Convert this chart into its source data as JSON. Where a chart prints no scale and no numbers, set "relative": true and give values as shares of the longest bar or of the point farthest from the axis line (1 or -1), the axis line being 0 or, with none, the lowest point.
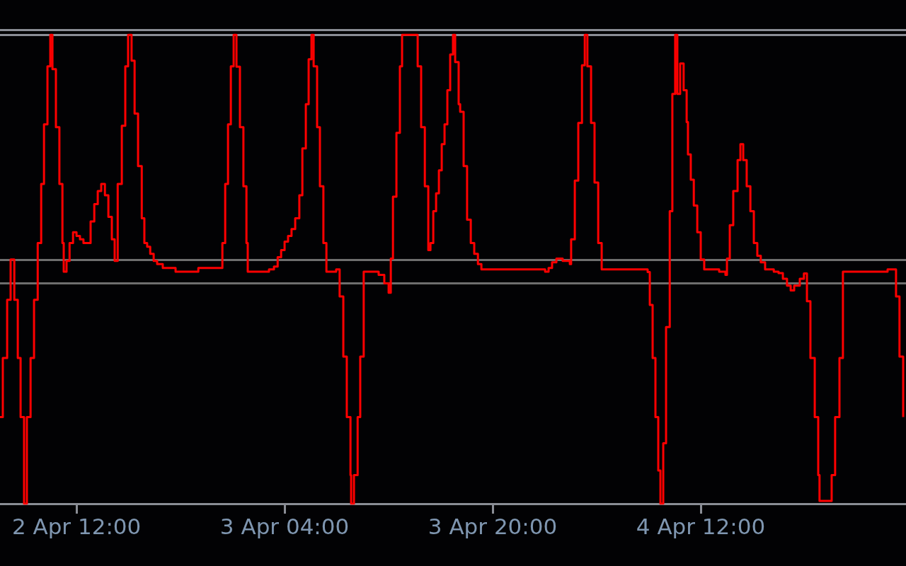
{
  "chart_data": {
    "type": "step",
    "relative": true,
    "color": "#ff0000",
    "tick_labels": "x",
    "xlim": [
      "--04-02T06:07",
      "--04-05T03:47"
    ],
    "xticks": [
      {
        "value": "--04-02T12:00",
        "label": "2 Apr 12:00"
      },
      {
        "value": "--04-03T04:00",
        "label": "3 Apr 04:00"
      },
      {
        "value": "--04-03T20:00",
        "label": "3 Apr 20:00"
      },
      {
        "value": "--04-04T12:00",
        "label": "4 Apr 12:00"
      }
    ],
    "ref_lines": [
      {
        "axis": "y",
        "value": 1.01,
        "color": "#8a8d95"
      },
      {
        "axis": "y",
        "value": 1.003,
        "color": "#8a8d95"
      },
      {
        "axis": "y",
        "value": 0.521,
        "color": "#6e6e6e"
      },
      {
        "axis": "y",
        "value": 0.473,
        "color": "#6e6e6e"
      }
    ],
    "x": [
      "--04-02T06:07",
      "--04-02T06:20",
      "--04-02T06:40",
      "--04-02T06:56",
      "--04-02T07:13",
      "--04-02T07:29",
      "--04-02T07:42",
      "--04-02T07:58",
      "--04-02T08:11",
      "--04-02T08:28",
      "--04-02T08:44",
      "--04-02T09:01",
      "--04-02T09:17",
      "--04-02T09:30",
      "--04-02T09:46",
      "--04-02T09:59",
      "--04-02T10:09",
      "--04-02T10:25",
      "--04-02T10:41",
      "--04-02T10:55",
      "--04-02T11:01",
      "--04-02T11:14",
      "--04-02T11:28",
      "--04-02T11:44",
      "--04-02T12:00",
      "--04-02T12:16",
      "--04-02T12:32",
      "--04-02T12:49",
      "--04-02T13:05",
      "--04-02T13:22",
      "--04-02T13:38",
      "--04-02T13:54",
      "--04-02T14:11",
      "--04-02T14:27",
      "--04-02T14:43",
      "--04-02T14:56",
      "--04-02T15:10",
      "--04-02T15:29",
      "--04-02T15:45",
      "--04-02T15:58",
      "--04-02T16:14",
      "--04-02T16:28",
      "--04-02T16:44",
      "--04-02T17:01",
      "--04-02T17:13",
      "--04-02T17:26",
      "--04-02T17:40",
      "--04-02T17:56",
      "--04-02T18:12",
      "--04-02T18:38",
      "--04-02T19:37",
      "--04-02T21:22",
      "--04-02T22:59",
      "--04-02T23:13",
      "--04-02T23:26",
      "--04-02T23:39",
      "--04-02T23:52",
      "--04-03T00:05",
      "--04-03T00:18",
      "--04-03T00:34",
      "--04-03T00:50",
      "--04-03T01:04",
      "--04-03T01:10",
      "--04-03T02:16",
      "--04-03T02:48",
      "--04-03T03:11",
      "--04-03T03:28",
      "--04-03T03:44",
      "--04-03T04:00",
      "--04-03T04:16",
      "--04-03T04:32",
      "--04-03T04:49",
      "--04-03T05:08",
      "--04-03T05:22",
      "--04-03T05:38",
      "--04-03T05:51",
      "--04-03T06:04",
      "--04-03T06:14",
      "--04-03T06:30",
      "--04-03T06:43",
      "--04-03T06:59",
      "--04-03T07:13",
      "--04-03T07:58",
      "--04-03T08:14",
      "--04-03T08:31",
      "--04-03T08:47",
      "--04-03T09:04",
      "--04-03T09:07",
      "--04-03T09:20",
      "--04-03T09:37",
      "--04-03T09:49",
      "--04-03T10:05",
      "--04-03T11:14",
      "--04-03T11:40",
      "--04-03T12:00",
      "--04-03T12:10",
      "--04-03T12:20",
      "--04-03T12:36",
      "--04-03T12:52",
      "--04-03T13:02",
      "--04-03T14:04",
      "--04-03T14:14",
      "--04-03T14:30",
      "--04-03T14:47",
      "--04-03T15:03",
      "--04-03T15:13",
      "--04-03T15:26",
      "--04-03T15:39",
      "--04-03T15:52",
      "--04-03T16:05",
      "--04-03T16:18",
      "--04-03T16:31",
      "--04-03T16:44",
      "--04-03T16:57",
      "--04-03T17:07",
      "--04-03T17:23",
      "--04-03T17:30",
      "--04-03T17:46",
      "--04-03T18:02",
      "--04-03T18:19",
      "--04-03T18:35",
      "--04-03T18:52",
      "--04-03T19:08",
      "--04-03T23:45",
      "--04-04T00:02",
      "--04-04T00:18",
      "--04-04T00:34",
      "--04-04T00:54",
      "--04-04T01:23",
      "--04-04T01:56",
      "--04-04T02:02",
      "--04-04T02:19",
      "--04-04T02:35",
      "--04-04T02:52",
      "--04-04T03:05",
      "--04-04T03:17",
      "--04-04T03:34",
      "--04-04T03:50",
      "--04-04T04:07",
      "--04-04T04:23",
      "--04-04T07:39",
      "--04-04T07:55",
      "--04-04T08:05",
      "--04-04T08:18",
      "--04-04T08:31",
      "--04-04T08:44",
      "--04-04T08:54",
      "--04-04T09:07",
      "--04-04T09:20",
      "--04-04T09:37",
      "--04-04T09:49",
      "--04-04T10:02",
      "--04-04T10:12",
      "--04-04T10:25",
      "--04-04T10:41",
      "--04-04T10:55",
      "--04-04T11:01",
      "--04-04T11:14",
      "--04-04T11:28",
      "--04-04T11:44",
      "--04-04T12:00",
      "--04-04T12:16",
      "--04-04T13:25",
      "--04-04T13:54",
      "--04-04T14:01",
      "--04-04T14:14",
      "--04-04T14:30",
      "--04-04T14:50",
      "--04-04T15:03",
      "--04-04T15:16",
      "--04-04T15:32",
      "--04-04T15:49",
      "--04-04T16:05",
      "--04-04T16:21",
      "--04-04T16:37",
      "--04-04T16:57",
      "--04-04T17:37",
      "--04-04T17:59",
      "--04-04T18:19",
      "--04-04T18:38",
      "--04-04T18:55",
      "--04-04T19:11",
      "--04-04T19:37",
      "--04-04T19:56",
      "--04-04T20:10",
      "--04-04T20:26",
      "--04-04T20:46",
      "--04-04T21:02",
      "--04-04T21:08",
      "--04-04T22:04",
      "--04-04T22:20",
      "--04-04T22:40",
      "--04-04T22:56",
      "--04-05T02:22",
      "--04-05T03:01",
      "--04-05T03:17",
      "--04-05T03:34"
    ],
    "values": [
      0.185,
      0.311,
      0.435,
      0.521,
      0.435,
      0.311,
      0.185,
      0,
      0.185,
      0.311,
      0.435,
      0.556,
      0.682,
      0.809,
      0.933,
      1,
      0.927,
      0.803,
      0.682,
      0.556,
      0.495,
      0.518,
      0.556,
      0.579,
      0.571,
      0.564,
      0.556,
      0.556,
      0.602,
      0.639,
      0.667,
      0.682,
      0.658,
      0.612,
      0.564,
      0.518,
      0.682,
      0.806,
      0.933,
      1,
      0.945,
      0.832,
      0.72,
      0.609,
      0.556,
      0.548,
      0.533,
      0.518,
      0.511,
      0.503,
      0.495,
      0.503,
      0.503,
      0.556,
      0.682,
      0.809,
      0.933,
      1,
      0.932,
      0.803,
      0.677,
      0.556,
      0.495,
      0.495,
      0.5,
      0.506,
      0.526,
      0.541,
      0.559,
      0.571,
      0.586,
      0.609,
      0.658,
      0.758,
      0.852,
      0.948,
      1,
      0.933,
      0.803,
      0.677,
      0.556,
      0.495,
      0.5,
      0.442,
      0.314,
      0.185,
      0.061,
      0,
      0.061,
      0.185,
      0.314,
      0.495,
      0.488,
      0.47,
      0.45,
      0.523,
      0.655,
      0.791,
      0.933,
      1,
      1,
      0.933,
      0.803,
      0.677,
      0.541,
      0.556,
      0.624,
      0.662,
      0.711,
      0.767,
      0.809,
      0.882,
      0.958,
      1,
      0.942,
      0.852,
      0.836,
      0.72,
      0.606,
      0.556,
      0.533,
      0.511,
      0.5,
      0.5,
      0.495,
      0.503,
      0.515,
      0.523,
      0.518,
      0.511,
      0.564,
      0.689,
      0.812,
      0.935,
      1,
      0.933,
      0.812,
      0.685,
      0.556,
      0.5,
      0.5,
      0.494,
      0.424,
      0.311,
      0.185,
      0.071,
      0,
      0.129,
      0.377,
      0.624,
      0.874,
      1,
      0.874,
      0.939,
      0.882,
      0.814,
      0.745,
      0.691,
      0.636,
      0.579,
      0.521,
      0.5,
      0.495,
      0.488,
      0.523,
      0.594,
      0.667,
      0.733,
      0.767,
      0.733,
      0.677,
      0.624,
      0.556,
      0.529,
      0.515,
      0.5,
      0.495,
      0.492,
      0.48,
      0.465,
      0.455,
      0.465,
      0.48,
      0.491,
      0.432,
      0.311,
      0.185,
      0.061,
      0.006,
      0.061,
      0.185,
      0.311,
      0.495,
      0.5,
      0.442,
      0.314,
      0.185
    ]
  }
}
